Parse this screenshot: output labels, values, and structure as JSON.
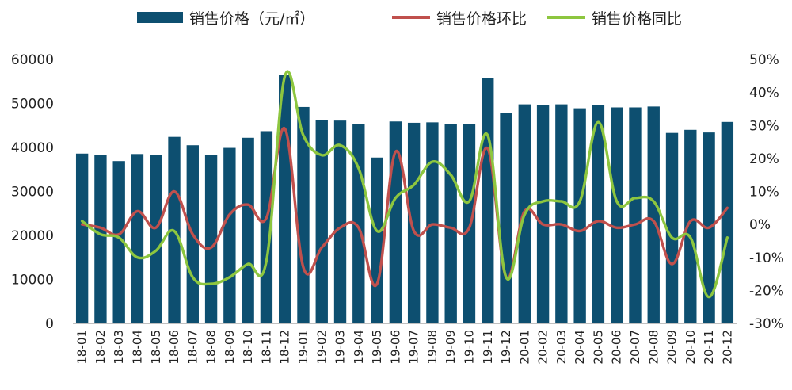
{
  "chart_data": {
    "type": "bar",
    "categories": [
      "18-01",
      "18-02",
      "18-03",
      "18-04",
      "18-05",
      "18-06",
      "18-07",
      "18-08",
      "18-09",
      "18-10",
      "18-11",
      "18-12",
      "19-01",
      "19-02",
      "19-03",
      "19-04",
      "19-05",
      "19-06",
      "19-07",
      "19-08",
      "19-09",
      "19-10",
      "19-11",
      "19-12",
      "20-01",
      "20-02",
      "20-03",
      "20-04",
      "20-05",
      "20-06",
      "20-07",
      "20-08",
      "20-09",
      "20-10",
      "20-11",
      "20-12"
    ],
    "series": [
      {
        "name": "销售价格（元/㎡）",
        "kind": "bar",
        "axis": "left",
        "color": "#0d4f70",
        "values": [
          38600,
          38200,
          36900,
          38500,
          38300,
          42400,
          40500,
          38200,
          39900,
          42200,
          43700,
          56500,
          49200,
          46300,
          46100,
          45400,
          37700,
          45900,
          45600,
          45700,
          45400,
          45300,
          55800,
          47800,
          49800,
          49600,
          49800,
          48900,
          49600,
          49100,
          49100,
          49300,
          43300,
          44000,
          43400,
          45800
        ]
      },
      {
        "name": "销售价格环比",
        "kind": "line",
        "axis": "right",
        "color": "#c0504d",
        "values": [
          0,
          -1,
          -3,
          4,
          -1,
          10,
          -3,
          -7,
          3,
          6,
          2,
          29,
          -13,
          -7,
          -1,
          -1,
          -18,
          22,
          -2,
          0,
          -1,
          -1,
          23,
          -16,
          4,
          0,
          0,
          -2,
          1,
          -1,
          0,
          1,
          -12,
          1,
          -1,
          5
        ]
      },
      {
        "name": "销售价格同比",
        "kind": "line",
        "axis": "right",
        "color": "#8dc63f",
        "values": [
          1,
          -3,
          -4,
          -10,
          -8,
          -2,
          -16,
          -18,
          -16,
          -12,
          -11,
          45,
          27,
          21,
          24,
          17,
          -2,
          8,
          12,
          19,
          15,
          7,
          27,
          -16,
          3,
          7,
          7,
          7,
          31,
          7,
          8,
          7,
          -4,
          -4,
          -22,
          -4
        ]
      }
    ],
    "y_left": {
      "ticks": [
        "0",
        "10000",
        "20000",
        "30000",
        "40000",
        "50000",
        "60000"
      ],
      "range": [
        0,
        60000
      ]
    },
    "y_right": {
      "ticks": [
        "-30%",
        "-20%",
        "-10%",
        "0%",
        "10%",
        "20%",
        "30%",
        "40%",
        "50%"
      ],
      "range": [
        -30,
        50
      ]
    },
    "legend": {
      "placement": "top"
    },
    "grid": false
  }
}
